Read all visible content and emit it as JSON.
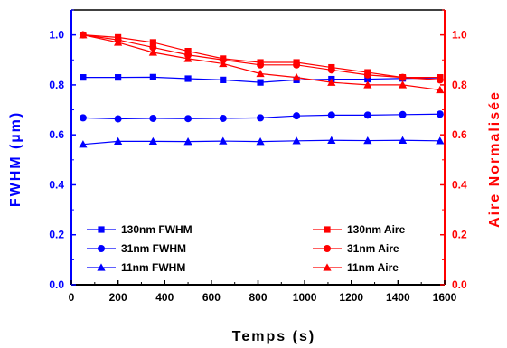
{
  "chart_data": {
    "type": "line",
    "xlabel": "Temps (s)",
    "ylabel_left": "FWHM (µm)",
    "ylabel_right": "Aire Normalisée",
    "xlim": [
      0,
      1600
    ],
    "ylim_left": [
      0.0,
      1.1
    ],
    "ylim_right": [
      0.0,
      1.1
    ],
    "x_ticks": [
      "0",
      "200",
      "400",
      "600",
      "800",
      "1000",
      "1200",
      "1400",
      "1600"
    ],
    "y_left_ticks": [
      "0.0",
      "0.2",
      "0.4",
      "0.6",
      "0.8",
      "1.0"
    ],
    "y_right_ticks": [
      "0.0",
      "0.2",
      "0.4",
      "0.6",
      "0.8",
      "1.0"
    ],
    "grid": false,
    "colors": {
      "left_axis": "#0000ff",
      "right_axis": "#ff0000"
    },
    "series": [
      {
        "name": "130nm FWHM",
        "axis": "left",
        "marker": "square",
        "color": "#0000ff",
        "x": [
          50,
          200,
          350,
          500,
          650,
          810,
          965,
          1115,
          1270,
          1420,
          1580
        ],
        "y": [
          0.83,
          0.83,
          0.831,
          0.825,
          0.82,
          0.81,
          0.82,
          0.823,
          0.823,
          0.826,
          0.828
        ]
      },
      {
        "name": "31nm FWHM",
        "axis": "left",
        "marker": "circle",
        "color": "#0000ff",
        "x": [
          50,
          200,
          350,
          500,
          650,
          810,
          965,
          1115,
          1270,
          1420,
          1580
        ],
        "y": [
          0.668,
          0.664,
          0.666,
          0.665,
          0.666,
          0.668,
          0.676,
          0.679,
          0.679,
          0.681,
          0.683
        ]
      },
      {
        "name": "11nm FWHM",
        "axis": "left",
        "marker": "triangle",
        "color": "#0000ff",
        "x": [
          50,
          200,
          350,
          500,
          650,
          810,
          965,
          1115,
          1270,
          1420,
          1580
        ],
        "y": [
          0.562,
          0.574,
          0.574,
          0.573,
          0.575,
          0.573,
          0.576,
          0.578,
          0.577,
          0.578,
          0.576
        ]
      },
      {
        "name": "130nm Aire",
        "axis": "right",
        "marker": "square",
        "color": "#ff0000",
        "x": [
          50,
          200,
          350,
          500,
          650,
          810,
          965,
          1115,
          1270,
          1420,
          1580
        ],
        "y": [
          1.0,
          0.99,
          0.97,
          0.935,
          0.905,
          0.89,
          0.89,
          0.87,
          0.85,
          0.83,
          0.83
        ]
      },
      {
        "name": "31nm Aire",
        "axis": "right",
        "marker": "circle",
        "color": "#ff0000",
        "x": [
          50,
          200,
          350,
          500,
          650,
          810,
          965,
          1115,
          1270,
          1420,
          1580
        ],
        "y": [
          1.0,
          0.98,
          0.95,
          0.92,
          0.9,
          0.88,
          0.88,
          0.86,
          0.84,
          0.83,
          0.82
        ]
      },
      {
        "name": "11nm Aire",
        "axis": "right",
        "marker": "triangle",
        "color": "#ff0000",
        "x": [
          50,
          200,
          350,
          500,
          650,
          810,
          965,
          1115,
          1270,
          1420,
          1580
        ],
        "y": [
          1.0,
          0.97,
          0.93,
          0.905,
          0.885,
          0.845,
          0.83,
          0.81,
          0.8,
          0.8,
          0.78
        ]
      }
    ],
    "legend_left": [
      "130nm FWHM",
      "31nm FWHM",
      "11nm FWHM"
    ],
    "legend_right": [
      "130nm Aire",
      "31nm Aire",
      "11nm Aire"
    ]
  }
}
